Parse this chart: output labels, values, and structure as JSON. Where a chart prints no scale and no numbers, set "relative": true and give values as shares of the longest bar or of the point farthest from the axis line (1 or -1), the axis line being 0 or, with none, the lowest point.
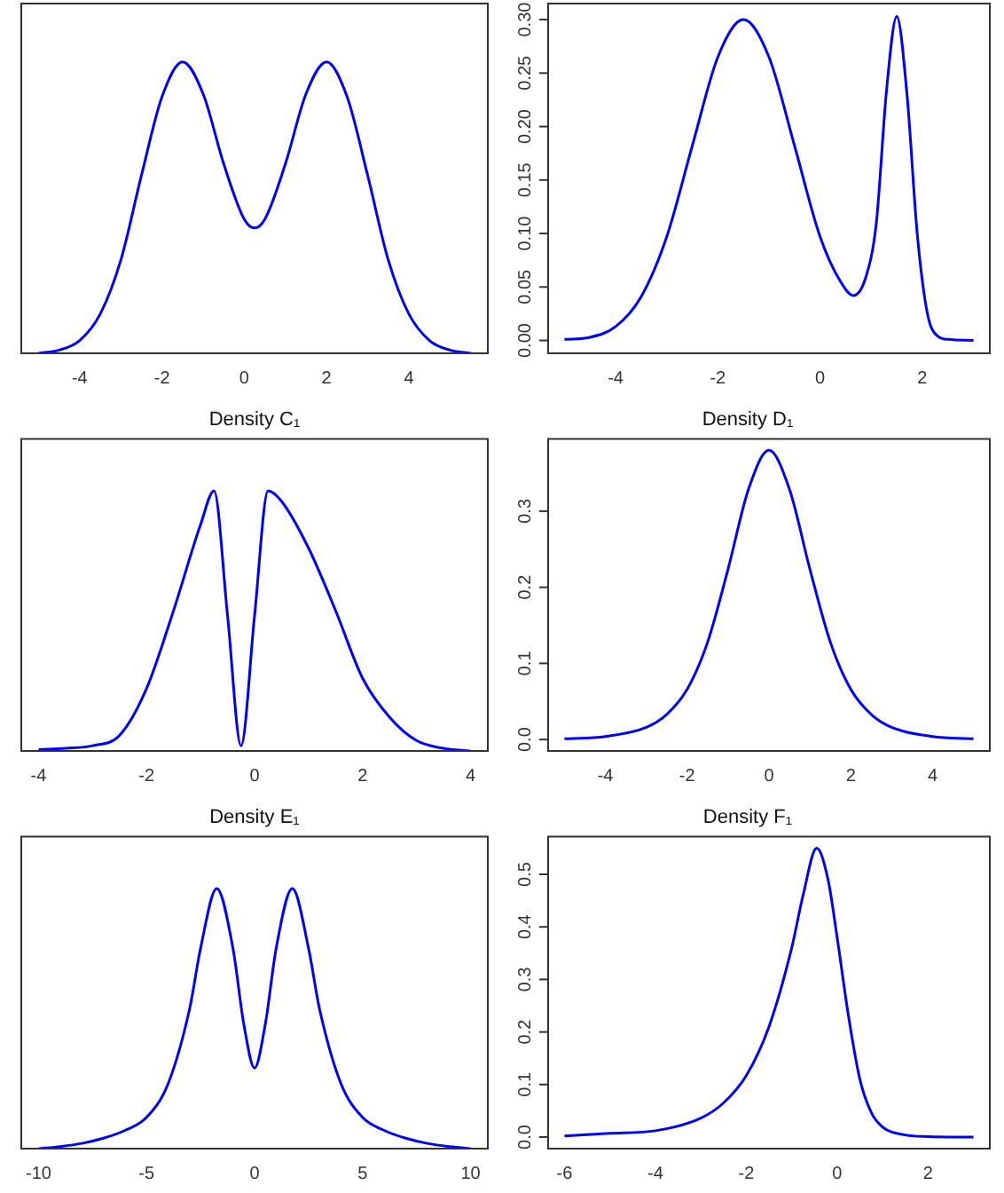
{
  "chart_data": [
    {
      "type": "line",
      "relative": true,
      "x": [
        -5,
        -4.5,
        -4,
        -3.5,
        -3,
        -2.5,
        -2,
        -1.5,
        -1,
        -0.5,
        0,
        0.25,
        0.5,
        1,
        1.5,
        2,
        2.5,
        3,
        3.5,
        4,
        4.5,
        5,
        5.5
      ],
      "xlim": [
        -5.42,
        5.92
      ],
      "xticks": [
        -4,
        -2,
        0,
        2,
        4
      ],
      "series": [
        {
          "color": "#0000ff",
          "values": [
            0,
            0.011,
            0.044,
            0.135,
            0.32,
            0.61,
            0.88,
            1,
            0.89,
            0.65,
            0.46,
            0.43,
            0.46,
            0.65,
            0.89,
            1,
            0.88,
            0.61,
            0.32,
            0.135,
            0.044,
            0.011,
            0
          ]
        }
      ]
    },
    {
      "type": "line",
      "x": [
        -5,
        -4.5,
        -4,
        -3.5,
        -3,
        -2.5,
        -2,
        -1.5,
        -1,
        -0.5,
        0,
        0.4,
        0.65,
        0.9,
        1.1,
        1.3,
        1.5,
        1.7,
        1.9,
        2.1,
        2.3,
        2.5,
        3
      ],
      "xlim": [
        -5.32,
        3.32
      ],
      "xticks": [
        -4,
        -2,
        0,
        2
      ],
      "ylim": [
        -0.012,
        0.315
      ],
      "yticks": [
        {
          "value": 0,
          "label": "0.00"
        },
        {
          "value": 0.05,
          "label": "0.05"
        },
        {
          "value": 0.1,
          "label": "0.10"
        },
        {
          "value": 0.15,
          "label": "0.15"
        },
        {
          "value": 0.2,
          "label": "0.20"
        },
        {
          "value": 0.25,
          "label": "0.25"
        },
        {
          "value": 0.3,
          "label": "0.30"
        }
      ],
      "series": [
        {
          "color": "#0000ff",
          "values": [
            0.001,
            0.003,
            0.013,
            0.041,
            0.097,
            0.182,
            0.265,
            0.3,
            0.265,
            0.182,
            0.097,
            0.055,
            0.042,
            0.06,
            0.11,
            0.234,
            0.303,
            0.23,
            0.1,
            0.025,
            0.004,
            0.001,
            0
          ]
        }
      ]
    },
    {
      "type": "line",
      "relative": true,
      "title": "Density C₁",
      "x": [
        -4,
        -3.5,
        -3,
        -2.5,
        -2,
        -1.5,
        -1,
        -0.75,
        -0.5,
        -0.25,
        0,
        0.25,
        0.5,
        1,
        1.5,
        2,
        2.5,
        3,
        3.5,
        4
      ],
      "xlim": [
        -4.32,
        4.32
      ],
      "xticks": [
        -4,
        -2,
        0,
        2,
        4
      ],
      "series": [
        {
          "color": "#0000ff",
          "values": [
            0.005,
            0.01,
            0.02,
            0.06,
            0.24,
            0.54,
            0.87,
            1,
            0.52,
            0.02,
            0.52,
            1,
            0.96,
            0.78,
            0.54,
            0.28,
            0.13,
            0.04,
            0.01,
            0
          ]
        }
      ]
    },
    {
      "type": "line",
      "title": "Density D₁",
      "x": [
        -5,
        -4,
        -3,
        -2.5,
        -2,
        -1.5,
        -1,
        -0.5,
        0,
        0.5,
        1,
        1.5,
        2,
        2.5,
        3,
        4,
        5
      ],
      "xlim": [
        -5.4,
        5.4
      ],
      "xticks": [
        -4,
        -2,
        0,
        2,
        4
      ],
      "ylim": [
        -0.015,
        0.395
      ],
      "yticks": [
        {
          "value": 0,
          "label": "0.0"
        },
        0.1,
        0.2,
        0.3
      ],
      "series": [
        {
          "color": "#0000ff",
          "values": [
            0.001,
            0.004,
            0.016,
            0.033,
            0.066,
            0.128,
            0.224,
            0.329,
            0.38,
            0.329,
            0.224,
            0.128,
            0.066,
            0.033,
            0.016,
            0.004,
            0.001
          ]
        }
      ]
    },
    {
      "type": "line",
      "relative": true,
      "title": "Density E₁",
      "x": [
        -10,
        -9,
        -8,
        -7,
        -6,
        -5,
        -4,
        -3,
        -2.5,
        -1.75,
        -1,
        -0.5,
        0,
        0.5,
        1,
        1.75,
        2.5,
        3,
        4,
        5,
        6,
        7,
        8,
        9,
        10
      ],
      "xlim": [
        -10.8,
        10.8
      ],
      "xticks": [
        -10,
        -5,
        0,
        5,
        10
      ],
      "series": [
        {
          "color": "#0000ff",
          "values": [
            0,
            0.008,
            0.02,
            0.04,
            0.07,
            0.12,
            0.25,
            0.54,
            0.77,
            1,
            0.77,
            0.48,
            0.31,
            0.48,
            0.77,
            1,
            0.77,
            0.54,
            0.25,
            0.12,
            0.07,
            0.04,
            0.02,
            0.008,
            0
          ]
        }
      ]
    },
    {
      "type": "line",
      "title": "Density F₁",
      "x": [
        -6,
        -5,
        -4,
        -3,
        -2.5,
        -2,
        -1.5,
        -1,
        -0.75,
        -0.45,
        -0.2,
        0,
        0.25,
        0.5,
        0.75,
        1,
        1.5,
        2,
        3
      ],
      "xlim": [
        -6.36,
        3.36
      ],
      "xticks": [
        -6,
        -4,
        -2,
        0,
        2
      ],
      "ylim": [
        -0.022,
        0.572
      ],
      "yticks": [
        {
          "value": 0,
          "label": "0.0"
        },
        0.1,
        0.2,
        0.3,
        0.4,
        0.5
      ],
      "series": [
        {
          "color": "#0000ff",
          "values": [
            0.002,
            0.007,
            0.012,
            0.036,
            0.065,
            0.117,
            0.21,
            0.36,
            0.46,
            0.55,
            0.49,
            0.38,
            0.23,
            0.11,
            0.047,
            0.019,
            0.004,
            0.001,
            0
          ]
        }
      ]
    }
  ]
}
